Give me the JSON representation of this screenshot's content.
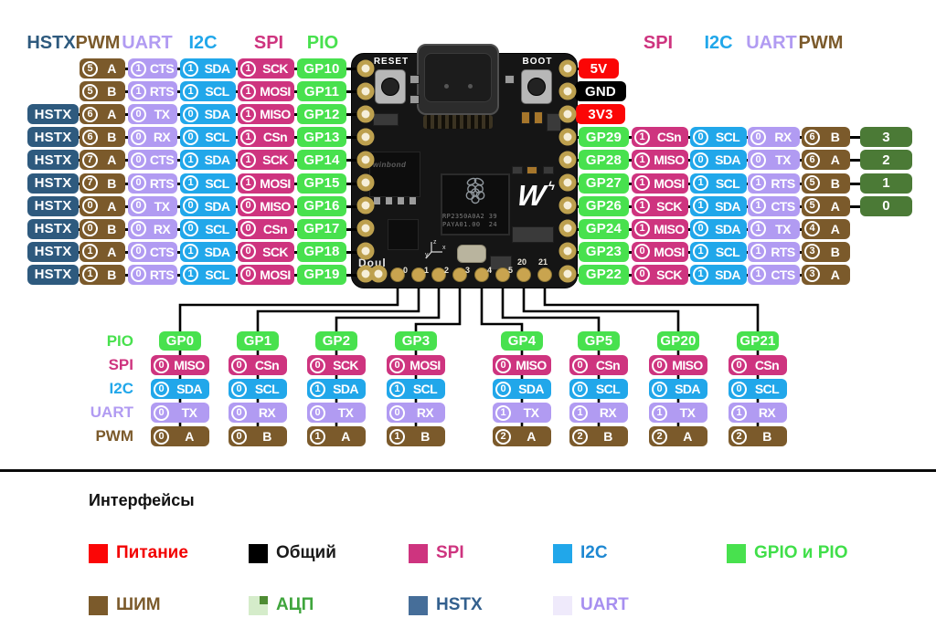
{
  "colors": {
    "hstx": "#2e5a7e",
    "pwm": "#7b5a2b",
    "uart": "#b19bf2",
    "i2c": "#21a7ea",
    "spi": "#ce347f",
    "gp": "#48e14e",
    "adc": "#4b7a36",
    "power": "#fb0606",
    "gnd": "#000000"
  },
  "tables": {
    "left": {
      "headers": [
        "HSTX",
        "PWM",
        "UART",
        "I2C",
        "SPI",
        "PIO"
      ],
      "rows": [
        {
          "gp": "GP10",
          "pwm": [
            "5",
            "A"
          ],
          "uart": [
            "1",
            "CTS"
          ],
          "i2c": [
            "1",
            "SDA"
          ],
          "spi": [
            "1",
            "SCK"
          ]
        },
        {
          "gp": "GP11",
          "pwm": [
            "5",
            "B"
          ],
          "uart": [
            "1",
            "RTS"
          ],
          "i2c": [
            "1",
            "SCL"
          ],
          "spi": [
            "1",
            "MOSI"
          ]
        },
        {
          "gp": "GP12",
          "hstx": "HSTX",
          "pwm": [
            "6",
            "A"
          ],
          "uart": [
            "0",
            "TX"
          ],
          "i2c": [
            "0",
            "SDA"
          ],
          "spi": [
            "1",
            "MISO"
          ]
        },
        {
          "gp": "GP13",
          "hstx": "HSTX",
          "pwm": [
            "6",
            "B"
          ],
          "uart": [
            "0",
            "RX"
          ],
          "i2c": [
            "0",
            "SCL"
          ],
          "spi": [
            "1",
            "CSn"
          ]
        },
        {
          "gp": "GP14",
          "hstx": "HSTX",
          "pwm": [
            "7",
            "A"
          ],
          "uart": [
            "0",
            "CTS"
          ],
          "i2c": [
            "1",
            "SDA"
          ],
          "spi": [
            "1",
            "SCK"
          ]
        },
        {
          "gp": "GP15",
          "hstx": "HSTX",
          "pwm": [
            "7",
            "B"
          ],
          "uart": [
            "0",
            "RTS"
          ],
          "i2c": [
            "1",
            "SCL"
          ],
          "spi": [
            "1",
            "MOSI"
          ]
        },
        {
          "gp": "GP16",
          "hstx": "HSTX",
          "pwm": [
            "0",
            "A"
          ],
          "uart": [
            "0",
            "TX"
          ],
          "i2c": [
            "0",
            "SDA"
          ],
          "spi": [
            "0",
            "MISO"
          ]
        },
        {
          "gp": "GP17",
          "hstx": "HSTX",
          "pwm": [
            "0",
            "B"
          ],
          "uart": [
            "0",
            "RX"
          ],
          "i2c": [
            "0",
            "SCL"
          ],
          "spi": [
            "0",
            "CSn"
          ]
        },
        {
          "gp": "GP18",
          "hstx": "HSTX",
          "pwm": [
            "1",
            "A"
          ],
          "uart": [
            "0",
            "CTS"
          ],
          "i2c": [
            "1",
            "SDA"
          ],
          "spi": [
            "0",
            "SCK"
          ]
        },
        {
          "gp": "GP19",
          "hstx": "HSTX",
          "pwm": [
            "1",
            "B"
          ],
          "uart": [
            "0",
            "RTS"
          ],
          "i2c": [
            "1",
            "SCL"
          ],
          "spi": [
            "0",
            "MOSI"
          ]
        }
      ]
    },
    "right": {
      "headers": [
        "SPI",
        "I2C",
        "UART",
        "PWM"
      ],
      "rows": [
        {
          "power": "5V",
          "color_key": "power"
        },
        {
          "power": "GND",
          "color_key": "gnd"
        },
        {
          "power": "3V3",
          "color_key": "power"
        },
        {
          "gp": "GP29",
          "spi": [
            "1",
            "CSn"
          ],
          "i2c": [
            "0",
            "SCL"
          ],
          "uart": [
            "0",
            "RX"
          ],
          "pwm": [
            "6",
            "B"
          ],
          "adc": "3"
        },
        {
          "gp": "GP28",
          "spi": [
            "1",
            "MISO"
          ],
          "i2c": [
            "0",
            "SDA"
          ],
          "uart": [
            "0",
            "TX"
          ],
          "pwm": [
            "6",
            "A"
          ],
          "adc": "2"
        },
        {
          "gp": "GP27",
          "spi": [
            "1",
            "MOSI"
          ],
          "i2c": [
            "1",
            "SCL"
          ],
          "uart": [
            "1",
            "RTS"
          ],
          "pwm": [
            "5",
            "B"
          ],
          "adc": "1"
        },
        {
          "gp": "GP26",
          "spi": [
            "1",
            "SCK"
          ],
          "i2c": [
            "1",
            "SDA"
          ],
          "uart": [
            "1",
            "CTS"
          ],
          "pwm": [
            "5",
            "A"
          ],
          "adc": "0"
        },
        {
          "gp": "GP24",
          "spi": [
            "1",
            "MISO"
          ],
          "i2c": [
            "0",
            "SDA"
          ],
          "uart": [
            "1",
            "TX"
          ],
          "pwm": [
            "4",
            "A"
          ]
        },
        {
          "gp": "GP23",
          "spi": [
            "0",
            "MOSI"
          ],
          "i2c": [
            "1",
            "SCL"
          ],
          "uart": [
            "1",
            "RTS"
          ],
          "pwm": [
            "3",
            "B"
          ]
        },
        {
          "gp": "GP22",
          "spi": [
            "0",
            "SCK"
          ],
          "i2c": [
            "1",
            "SDA"
          ],
          "uart": [
            "1",
            "CTS"
          ],
          "pwm": [
            "3",
            "A"
          ]
        }
      ]
    },
    "bottom": {
      "labels": [
        "PIO",
        "SPI",
        "I2C",
        "UART",
        "PWM"
      ],
      "columns": [
        {
          "gp": "GP0",
          "spi": [
            "0",
            "MISO"
          ],
          "i2c": [
            "0",
            "SDA"
          ],
          "uart": [
            "0",
            "TX"
          ],
          "pwm": [
            "0",
            "A"
          ]
        },
        {
          "gp": "GP1",
          "spi": [
            "0",
            "CSn"
          ],
          "i2c": [
            "0",
            "SCL"
          ],
          "uart": [
            "0",
            "RX"
          ],
          "pwm": [
            "0",
            "B"
          ]
        },
        {
          "gp": "GP2",
          "spi": [
            "0",
            "SCK"
          ],
          "i2c": [
            "1",
            "SDA"
          ],
          "uart": [
            "0",
            "TX"
          ],
          "pwm": [
            "1",
            "A"
          ]
        },
        {
          "gp": "GP3",
          "spi": [
            "0",
            "MOSI"
          ],
          "i2c": [
            "1",
            "SCL"
          ],
          "uart": [
            "0",
            "RX"
          ],
          "pwm": [
            "1",
            "B"
          ]
        },
        {
          "gp": "GP4",
          "spi": [
            "0",
            "MISO"
          ],
          "i2c": [
            "0",
            "SDA"
          ],
          "uart": [
            "1",
            "TX"
          ],
          "pwm": [
            "2",
            "A"
          ]
        },
        {
          "gp": "GP5",
          "spi": [
            "0",
            "CSn"
          ],
          "i2c": [
            "0",
            "SCL"
          ],
          "uart": [
            "1",
            "RX"
          ],
          "pwm": [
            "2",
            "B"
          ]
        },
        {
          "gp": "GP20",
          "spi": [
            "0",
            "MISO"
          ],
          "i2c": [
            "0",
            "SDA"
          ],
          "uart": [
            "1",
            "TX"
          ],
          "pwm": [
            "2",
            "A"
          ]
        },
        {
          "gp": "GP21",
          "spi": [
            "0",
            "CSn"
          ],
          "i2c": [
            "0",
            "SCL"
          ],
          "uart": [
            "1",
            "RX"
          ],
          "pwm": [
            "2",
            "B"
          ]
        }
      ]
    }
  },
  "board": {
    "reset": "RESET",
    "boot": "BOOT",
    "flash": "winbond",
    "chip_line1": "RP2350A0A2 39",
    "chip_line2": "PAYA01.00  24",
    "logo": "W",
    "silk": "Doul",
    "pad_numbers": [
      "0",
      "1",
      "2",
      "3",
      "4",
      "5",
      "20",
      "21"
    ]
  },
  "legend": {
    "title": "Интерфейсы",
    "rows": [
      [
        {
          "label": "Питание",
          "swatch": "#fb0606",
          "text": "#f20000"
        },
        {
          "label": "Общий",
          "swatch": "#000000",
          "text": "#1a1a1a"
        },
        {
          "label": "SPI",
          "swatch": "#ce347f",
          "text": "#ce347f"
        },
        {
          "label": "I2C",
          "swatch": "#21a7ea",
          "text": "#1e88d2"
        },
        {
          "label": "GPIO и PIO",
          "swatch": "#48e14e",
          "text": "#40df49"
        }
      ],
      [
        {
          "label": "ШИМ",
          "swatch": "#7b5a2b",
          "text": "#7b5a2b"
        },
        {
          "label": "АЦП",
          "swatch": "#d5ecca",
          "corner": "#4e8c33",
          "text": "#3fa53c"
        },
        {
          "label": "HSTX",
          "swatch": "#466e99",
          "text": "#33608e"
        },
        {
          "label": "UART",
          "swatch": "#efeafb",
          "text": "#a78ff0"
        }
      ]
    ]
  }
}
